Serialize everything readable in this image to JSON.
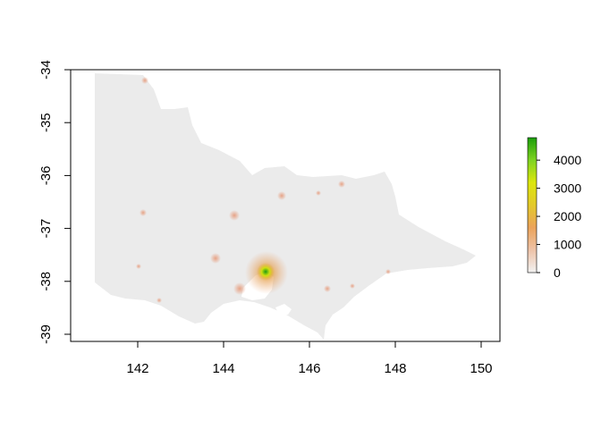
{
  "map": {
    "x_ticks": [
      "142",
      "144",
      "146",
      "148",
      "150"
    ],
    "y_ticks": [
      "-34",
      "-35",
      "-36",
      "-37",
      "-38",
      "-39"
    ],
    "x_range": [
      140.9,
      150.2
    ],
    "y_range": [
      -39.1,
      -34.0
    ]
  },
  "legend": {
    "ticks": [
      "0",
      "1000",
      "2000",
      "3000",
      "4000"
    ],
    "min": 0,
    "max": 4800,
    "colors": [
      "#f2f2f2",
      "#eec3a8",
      "#eba35a",
      "#e3c92a",
      "#dce60c",
      "#7ed321",
      "#1a9e0a"
    ]
  },
  "colors": {
    "land": "#ebebeb",
    "hotspot_low": "#eaa68b",
    "hotspot_mid": "#e8a33a",
    "hotspot_high": "#d8e00e",
    "hotspot_peak": "#1f9b14"
  }
}
